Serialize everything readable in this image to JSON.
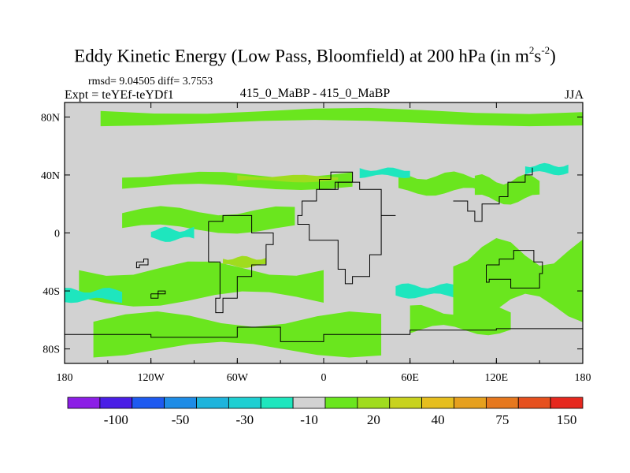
{
  "chart_data": {
    "type": "heatmap",
    "title_main": "Eddy Kinetic Energy (Low Pass, Bloomfield) at 200 hPa (in m",
    "title_sup1": "2",
    "title_mid": "s",
    "title_sup2": "-2",
    "title_end": ")",
    "stats": "rmsd= 9.04505 diff= 3.7553",
    "expt": "Expt = teYEf-teYDf1",
    "subtitle": "415_0_MaBP - 415_0_MaBP",
    "season": "JJA",
    "xlim": [
      -180,
      180
    ],
    "ylim": [
      -90,
      90
    ],
    "x_ticks": [
      {
        "value": -180,
        "label": "180"
      },
      {
        "value": -120,
        "label": "120W"
      },
      {
        "value": -60,
        "label": "60W"
      },
      {
        "value": 0,
        "label": "0"
      },
      {
        "value": 60,
        "label": "60E"
      },
      {
        "value": 120,
        "label": "120E"
      },
      {
        "value": 180,
        "label": "180"
      }
    ],
    "y_ticks": [
      {
        "value": 80,
        "label": "80N"
      },
      {
        "value": 40,
        "label": "40N"
      },
      {
        "value": 0,
        "label": "0"
      },
      {
        "value": -40,
        "label": "40S"
      },
      {
        "value": -80,
        "label": "80S"
      }
    ],
    "colorbar": {
      "colors": [
        "#8c1ee6",
        "#4a1ee6",
        "#1e5af0",
        "#1e8ce6",
        "#1eb4dc",
        "#1ecfd2",
        "#1ee6be",
        "#d2d2d2",
        "#6ae61e",
        "#a0dc1e",
        "#c8d21e",
        "#e6be1e",
        "#e6a01e",
        "#e6781e",
        "#e6501e",
        "#e6281e"
      ],
      "labels": [
        {
          "after_box": 2,
          "text": "-100"
        },
        {
          "after_box": 4,
          "text": "-50"
        },
        {
          "after_box": 6,
          "text": "-30"
        },
        {
          "after_box": 8,
          "text": "-10"
        },
        {
          "after_box": 10,
          "text": "20"
        },
        {
          "after_box": 12,
          "text": "40"
        },
        {
          "after_box": 14,
          "text": "75"
        },
        {
          "after_box": 16,
          "text": "150"
        }
      ]
    },
    "background_color": "#d2d2d2",
    "regions": [
      {
        "level": "20",
        "color": "#6ae61e",
        "lon": [
          -155,
          180
        ],
        "lat": [
          74,
          86
        ],
        "shape": "band-north"
      },
      {
        "level": "20",
        "color": "#6ae61e",
        "lon": [
          -140,
          20
        ],
        "lat": [
          30,
          42
        ],
        "shape": "band-40n"
      },
      {
        "level": "20",
        "color": "#6ae61e",
        "lon": [
          -140,
          -20
        ],
        "lat": [
          0,
          18
        ],
        "shape": "tropics-west"
      },
      {
        "level": "20",
        "color": "#6ae61e",
        "lon": [
          105,
          150
        ],
        "lat": [
          20,
          40
        ],
        "shape": "east-40n"
      },
      {
        "level": "20",
        "color": "#6ae61e",
        "lon": [
          52,
          110
        ],
        "lat": [
          26,
          42
        ],
        "shape": "asia-40n"
      },
      {
        "level": "20",
        "color": "#6ae61e",
        "lon": [
          -170,
          0
        ],
        "lat": [
          -50,
          -20
        ],
        "shape": "south-mid"
      },
      {
        "level": "20",
        "color": "#6ae61e",
        "lon": [
          90,
          180
        ],
        "lat": [
          -60,
          -5
        ],
        "shape": "aus-east"
      },
      {
        "level": "20",
        "color": "#6ae61e",
        "lon": [
          -160,
          40
        ],
        "lat": [
          -85,
          -55
        ],
        "shape": "southern-ocean"
      },
      {
        "level": "20",
        "color": "#6ae61e",
        "lon": [
          60,
          130
        ],
        "lat": [
          -70,
          -50
        ],
        "shape": "southern-indian"
      },
      {
        "level": "40",
        "color": "#a0dc1e",
        "lon": [
          -60,
          10
        ],
        "lat": [
          35,
          40
        ],
        "shape": "core"
      },
      {
        "level": "40",
        "color": "#a0dc1e",
        "lon": [
          -70,
          -40
        ],
        "lat": [
          -24,
          -16
        ],
        "shape": "core"
      },
      {
        "level": "-10",
        "color": "#1ee6be",
        "lon": [
          -120,
          -90
        ],
        "lat": [
          -6,
          4
        ],
        "shape": "neg"
      },
      {
        "level": "-10",
        "color": "#1ee6be",
        "lon": [
          50,
          90
        ],
        "lat": [
          -45,
          -35
        ],
        "shape": "neg"
      },
      {
        "level": "-10",
        "color": "#1ee6be",
        "lon": [
          -180,
          -140
        ],
        "lat": [
          -48,
          -38
        ],
        "shape": "neg"
      },
      {
        "level": "-10",
        "color": "#1ee6be",
        "lon": [
          25,
          60
        ],
        "lat": [
          38,
          45
        ],
        "shape": "neg"
      },
      {
        "level": "-10",
        "color": "#1ee6be",
        "lon": [
          140,
          170
        ],
        "lat": [
          40,
          48
        ],
        "shape": "neg"
      }
    ]
  }
}
